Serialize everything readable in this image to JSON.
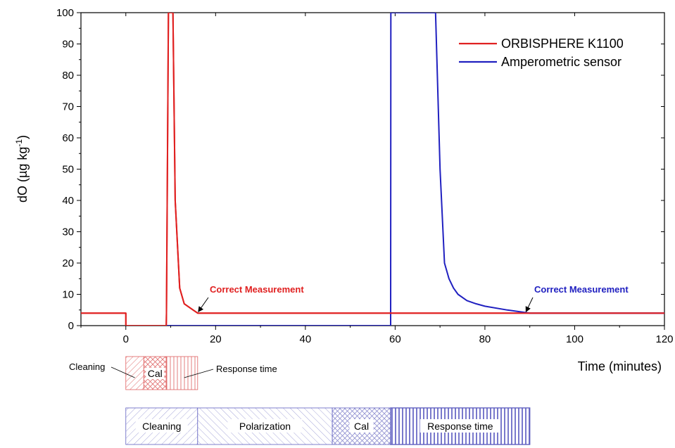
{
  "chart_data": {
    "type": "line",
    "xlabel": "Time (minutes)",
    "ylabel": "dO (µg kg",
    "ylabel_sup": "-1",
    "ylabel_close": ")",
    "xlim": [
      -10,
      120
    ],
    "ylim": [
      0,
      100
    ],
    "x_ticks": [
      0,
      20,
      40,
      60,
      80,
      100,
      120
    ],
    "y_ticks": [
      0,
      10,
      20,
      30,
      40,
      50,
      60,
      70,
      80,
      90,
      100
    ],
    "legend_position": "top-right",
    "series": [
      {
        "name": "ORBISPHERE K1100",
        "color": "#e02020",
        "x": [
          -10,
          0,
          0,
          9,
          9.05,
          9.5,
          10.5,
          11,
          12,
          13,
          15,
          16,
          20,
          40,
          60,
          80,
          100,
          120
        ],
        "y": [
          4,
          4,
          0,
          0,
          4,
          100,
          100,
          40,
          12,
          7,
          5,
          4,
          4,
          4,
          4,
          4,
          4,
          4
        ]
      },
      {
        "name": "Amperometric sensor",
        "color": "#2020c0",
        "x": [
          0,
          59,
          59.05,
          69,
          70,
          71,
          72,
          73,
          74,
          76,
          78,
          80,
          85,
          90,
          100,
          120
        ],
        "y": [
          0,
          0,
          100,
          100,
          50,
          20,
          15,
          12,
          10,
          8,
          7,
          6.2,
          5,
          4,
          4,
          4
        ]
      }
    ],
    "annotations": [
      {
        "text": "Correct Measurement",
        "color": "#e02020",
        "arrow_x": 16,
        "arrow_y": 4
      },
      {
        "text": "Correct Measurement",
        "color": "#2020c0",
        "arrow_x": 89,
        "arrow_y": 4
      }
    ],
    "phases": {
      "orbisphere": {
        "color": "#e06060",
        "segments": [
          {
            "label": "",
            "start": 0,
            "end": 4
          },
          {
            "label": "Cal",
            "start": 4,
            "end": 9
          },
          {
            "label": "",
            "start": 9,
            "end": 16
          }
        ],
        "callouts": [
          "Cleaning",
          "Response time"
        ]
      },
      "amperometric": {
        "color": "#6060c0",
        "segments": [
          {
            "label": "Cleaning",
            "start": 0,
            "end": 16
          },
          {
            "label": "Polarization",
            "start": 16,
            "end": 46
          },
          {
            "label": "Cal",
            "start": 46,
            "end": 59
          },
          {
            "label": "Response time",
            "start": 59,
            "end": 90
          }
        ]
      }
    }
  }
}
